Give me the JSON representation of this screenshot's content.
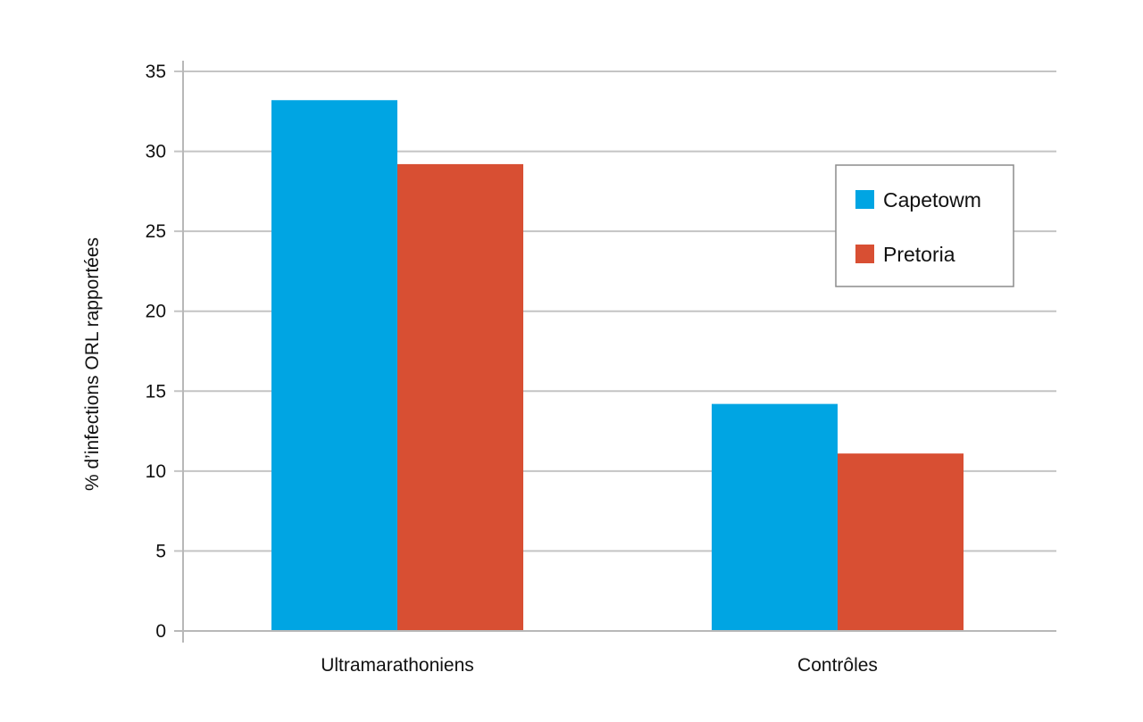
{
  "chart_data": {
    "type": "bar",
    "categories": [
      "Ultramarathoniens",
      "Contrôles"
    ],
    "series": [
      {
        "name": "Capetowm",
        "values": [
          33.2,
          14.2
        ],
        "color": "#00a5e3"
      },
      {
        "name": "Pretoria",
        "values": [
          29.2,
          11.1
        ],
        "color": "#d84f33"
      }
    ],
    "ylabel": "% d’infections ORL rapportées",
    "xlabel": "",
    "ylim": [
      0,
      35
    ],
    "yticks": [
      0,
      5,
      10,
      15,
      20,
      25,
      30,
      35
    ],
    "grid": true,
    "legend_position": "top-right"
  }
}
